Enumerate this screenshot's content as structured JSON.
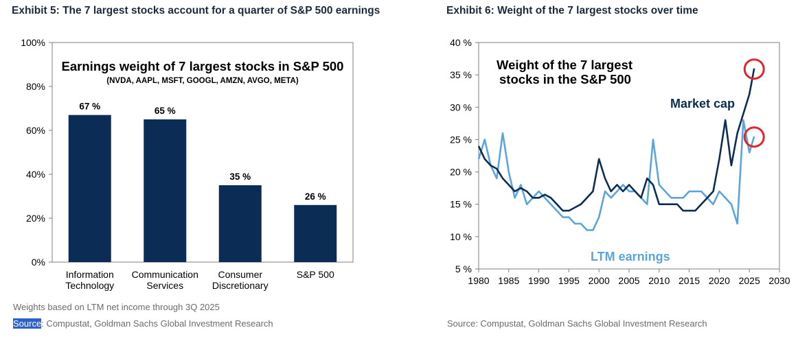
{
  "exhibit5": {
    "title": "Exhibit 5: The 7 largest stocks account for a quarter of S&P 500 earnings",
    "note": "Weights based on LTM net income through 3Q 2025",
    "source_label": "Source",
    "source_text": ": Compustat, Goldman Sachs Global Investment Research"
  },
  "exhibit6": {
    "title": "Exhibit 6: Weight of the 7 largest stocks over time",
    "source_text": "Source: Compustat, Goldman Sachs Global Investment Research"
  },
  "colors": {
    "navy": "#0b2d55",
    "light_blue": "#5aa5dc",
    "title_dark": "#1b2a3a",
    "red_circle": "#e3262b"
  },
  "chart_data": [
    {
      "type": "bar",
      "title": "Earnings weight of 7 largest stocks in S&P 500",
      "subtitle": "(NVDA, AAPL, MSFT, GOOGL, AMZN, AVGO, META)",
      "categories": [
        [
          "Information",
          "Technology"
        ],
        [
          "Communication",
          "Services"
        ],
        [
          "Consumer",
          "Discretionary"
        ],
        [
          "S&P 500"
        ]
      ],
      "values": [
        67,
        65,
        35,
        26
      ],
      "value_labels": [
        "67 %",
        "65 %",
        "35 %",
        "26 %"
      ],
      "ylim": [
        0,
        100
      ],
      "yticks": [
        0,
        20,
        40,
        60,
        80,
        100
      ],
      "ytick_labels": [
        "0%",
        "20%",
        "40%",
        "60%",
        "80%",
        "100%"
      ],
      "xlabel": "",
      "ylabel": "",
      "grid": false
    },
    {
      "type": "line",
      "title": [
        "Weight of the 7 largest",
        "stocks in the S&P 500"
      ],
      "xlim": [
        1980,
        2030
      ],
      "ylim": [
        5,
        40
      ],
      "xticks": [
        1980,
        1985,
        1990,
        1995,
        2000,
        2005,
        2010,
        2015,
        2020,
        2025,
        2030
      ],
      "yticks": [
        5,
        10,
        15,
        20,
        25,
        30,
        35,
        40
      ],
      "ytick_labels": [
        "5 %",
        "10 %",
        "15 %",
        "20 %",
        "25 %",
        "30 %",
        "35 %",
        "40 %"
      ],
      "grid": false,
      "series": [
        {
          "name": "Market cap",
          "color": "#0b2d55",
          "x": [
            1980,
            1981,
            1982,
            1983,
            1984,
            1985,
            1986,
            1987,
            1988,
            1989,
            1990,
            1991,
            1992,
            1993,
            1994,
            1995,
            1996,
            1997,
            1998,
            1999,
            2000,
            2001,
            2002,
            2003,
            2004,
            2005,
            2006,
            2007,
            2008,
            2009,
            2010,
            2011,
            2012,
            2013,
            2014,
            2015,
            2016,
            2017,
            2018,
            2019,
            2020,
            2021,
            2022,
            2023,
            2024,
            2025,
            2025.8
          ],
          "y": [
            24,
            22,
            21,
            20.5,
            19,
            18,
            17,
            17.5,
            17,
            16,
            16,
            16.5,
            16,
            15,
            14,
            14,
            14.5,
            15,
            16,
            17,
            22,
            19,
            17,
            18,
            17,
            18,
            17,
            16,
            19,
            18,
            15,
            15,
            15,
            15,
            14,
            14,
            14,
            15,
            16,
            17,
            22,
            28,
            21,
            26,
            29,
            32,
            36
          ]
        },
        {
          "name": "LTM earnings",
          "color": "#5aa5dc",
          "x": [
            1980,
            1981,
            1982,
            1983,
            1984,
            1985,
            1986,
            1987,
            1988,
            1989,
            1990,
            1991,
            1992,
            1993,
            1994,
            1995,
            1996,
            1997,
            1998,
            1999,
            2000,
            2001,
            2002,
            2003,
            2004,
            2005,
            2006,
            2007,
            2008,
            2009,
            2010,
            2011,
            2012,
            2013,
            2014,
            2015,
            2016,
            2017,
            2018,
            2019,
            2020,
            2021,
            2022,
            2023,
            2024,
            2025,
            2025.8
          ],
          "y": [
            22,
            25,
            21,
            19,
            26,
            20,
            16,
            18,
            15,
            16,
            17,
            16,
            15,
            14,
            13,
            13,
            12,
            12,
            11,
            11,
            13,
            17,
            16,
            17,
            18,
            17,
            17,
            16,
            15,
            25,
            18,
            17,
            16,
            16,
            16,
            17,
            17,
            17,
            16,
            15,
            17,
            16,
            15,
            12,
            28,
            23,
            25.5
          ]
        }
      ],
      "annotations": [
        "Market cap",
        "LTM earnings"
      ]
    }
  ]
}
